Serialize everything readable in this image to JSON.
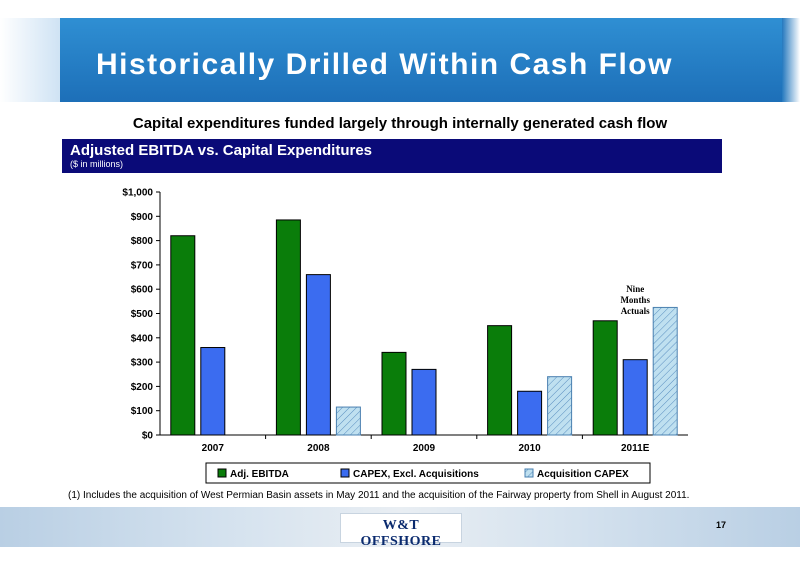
{
  "slide": {
    "title": "Historically Drilled Within Cash Flow",
    "subtitle": "Capital expenditures funded largely through internally generated cash flow",
    "chart_title": "Adjusted EBITDA vs. Capital Expenditures",
    "chart_unit": "($ in millions)",
    "footnote": "(1) Includes the acquisition of West Permian Basin assets in May 2011 and the acquisition of the Fairway property from Shell in August 2011.",
    "logo_text": "W&T OFFSHORE",
    "page_number": "17"
  },
  "colors": {
    "ebitda": "#0a7d0a",
    "capex": "#3b6cf0",
    "acq": "#bfe0f0"
  },
  "chart_data": {
    "type": "bar",
    "title": "Adjusted EBITDA vs. Capital Expenditures",
    "ylabel": "",
    "xlabel": "",
    "categories": [
      "2007",
      "2008",
      "2009",
      "2010",
      "2011E"
    ],
    "ylim": [
      0,
      1000
    ],
    "y_ticks": [
      "$0",
      "$100",
      "$200",
      "$300",
      "$400",
      "$500",
      "$600",
      "$700",
      "$800",
      "$900",
      "$1,000"
    ],
    "y_tick_values": [
      0,
      100,
      200,
      300,
      400,
      500,
      600,
      700,
      800,
      900,
      1000
    ],
    "series": [
      {
        "name": "Adj. EBITDA",
        "values": [
          820,
          885,
          340,
          450,
          470
        ]
      },
      {
        "name": "CAPEX, Excl. Acquisitions",
        "values": [
          360,
          660,
          270,
          180,
          310
        ]
      },
      {
        "name": "Acquisition CAPEX",
        "values": [
          0,
          115,
          0,
          240,
          525
        ]
      }
    ],
    "annotation": {
      "lines": [
        "Nine",
        "Months",
        "Actuals"
      ]
    },
    "legend_position": "bottom",
    "grid": false
  }
}
